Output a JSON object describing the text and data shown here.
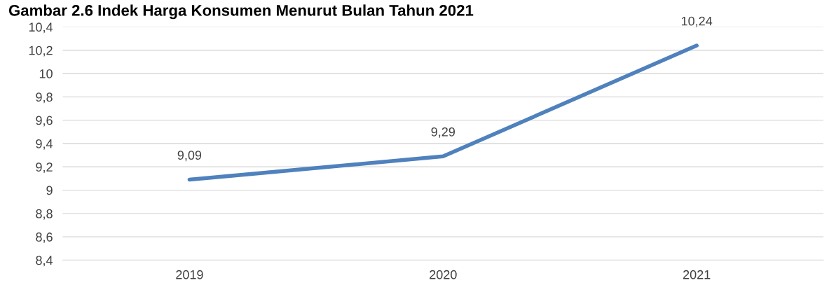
{
  "chart_data": {
    "type": "line",
    "title": "Gambar 2.6 Indek Harga Konsumen Menurut Bulan Tahun 2021",
    "categories": [
      "2019",
      "2020",
      "2021"
    ],
    "series": [
      {
        "color": "#4f81bd",
        "values": [
          9.09,
          9.29,
          10.24
        ],
        "value_labels": [
          "9,09",
          "9,29",
          "10,24"
        ]
      }
    ],
    "ylim": [
      8.4,
      10.4
    ],
    "yticks": [
      {
        "value": 8.4,
        "label": "8,4"
      },
      {
        "value": 8.6,
        "label": "8,6"
      },
      {
        "value": 8.8,
        "label": "8,8"
      },
      {
        "value": 9,
        "label": "9"
      },
      {
        "value": 9.2,
        "label": "9,2"
      },
      {
        "value": 9.4,
        "label": "9,4"
      },
      {
        "value": 9.6,
        "label": "9,6"
      },
      {
        "value": 9.8,
        "label": "9,8"
      },
      {
        "value": 10,
        "label": "10"
      },
      {
        "value": 10.2,
        "label": "10,2"
      },
      {
        "value": 10.4,
        "label": "10,4"
      }
    ],
    "grid": "y",
    "marker": "none",
    "line_style": "solid",
    "legend": false
  }
}
